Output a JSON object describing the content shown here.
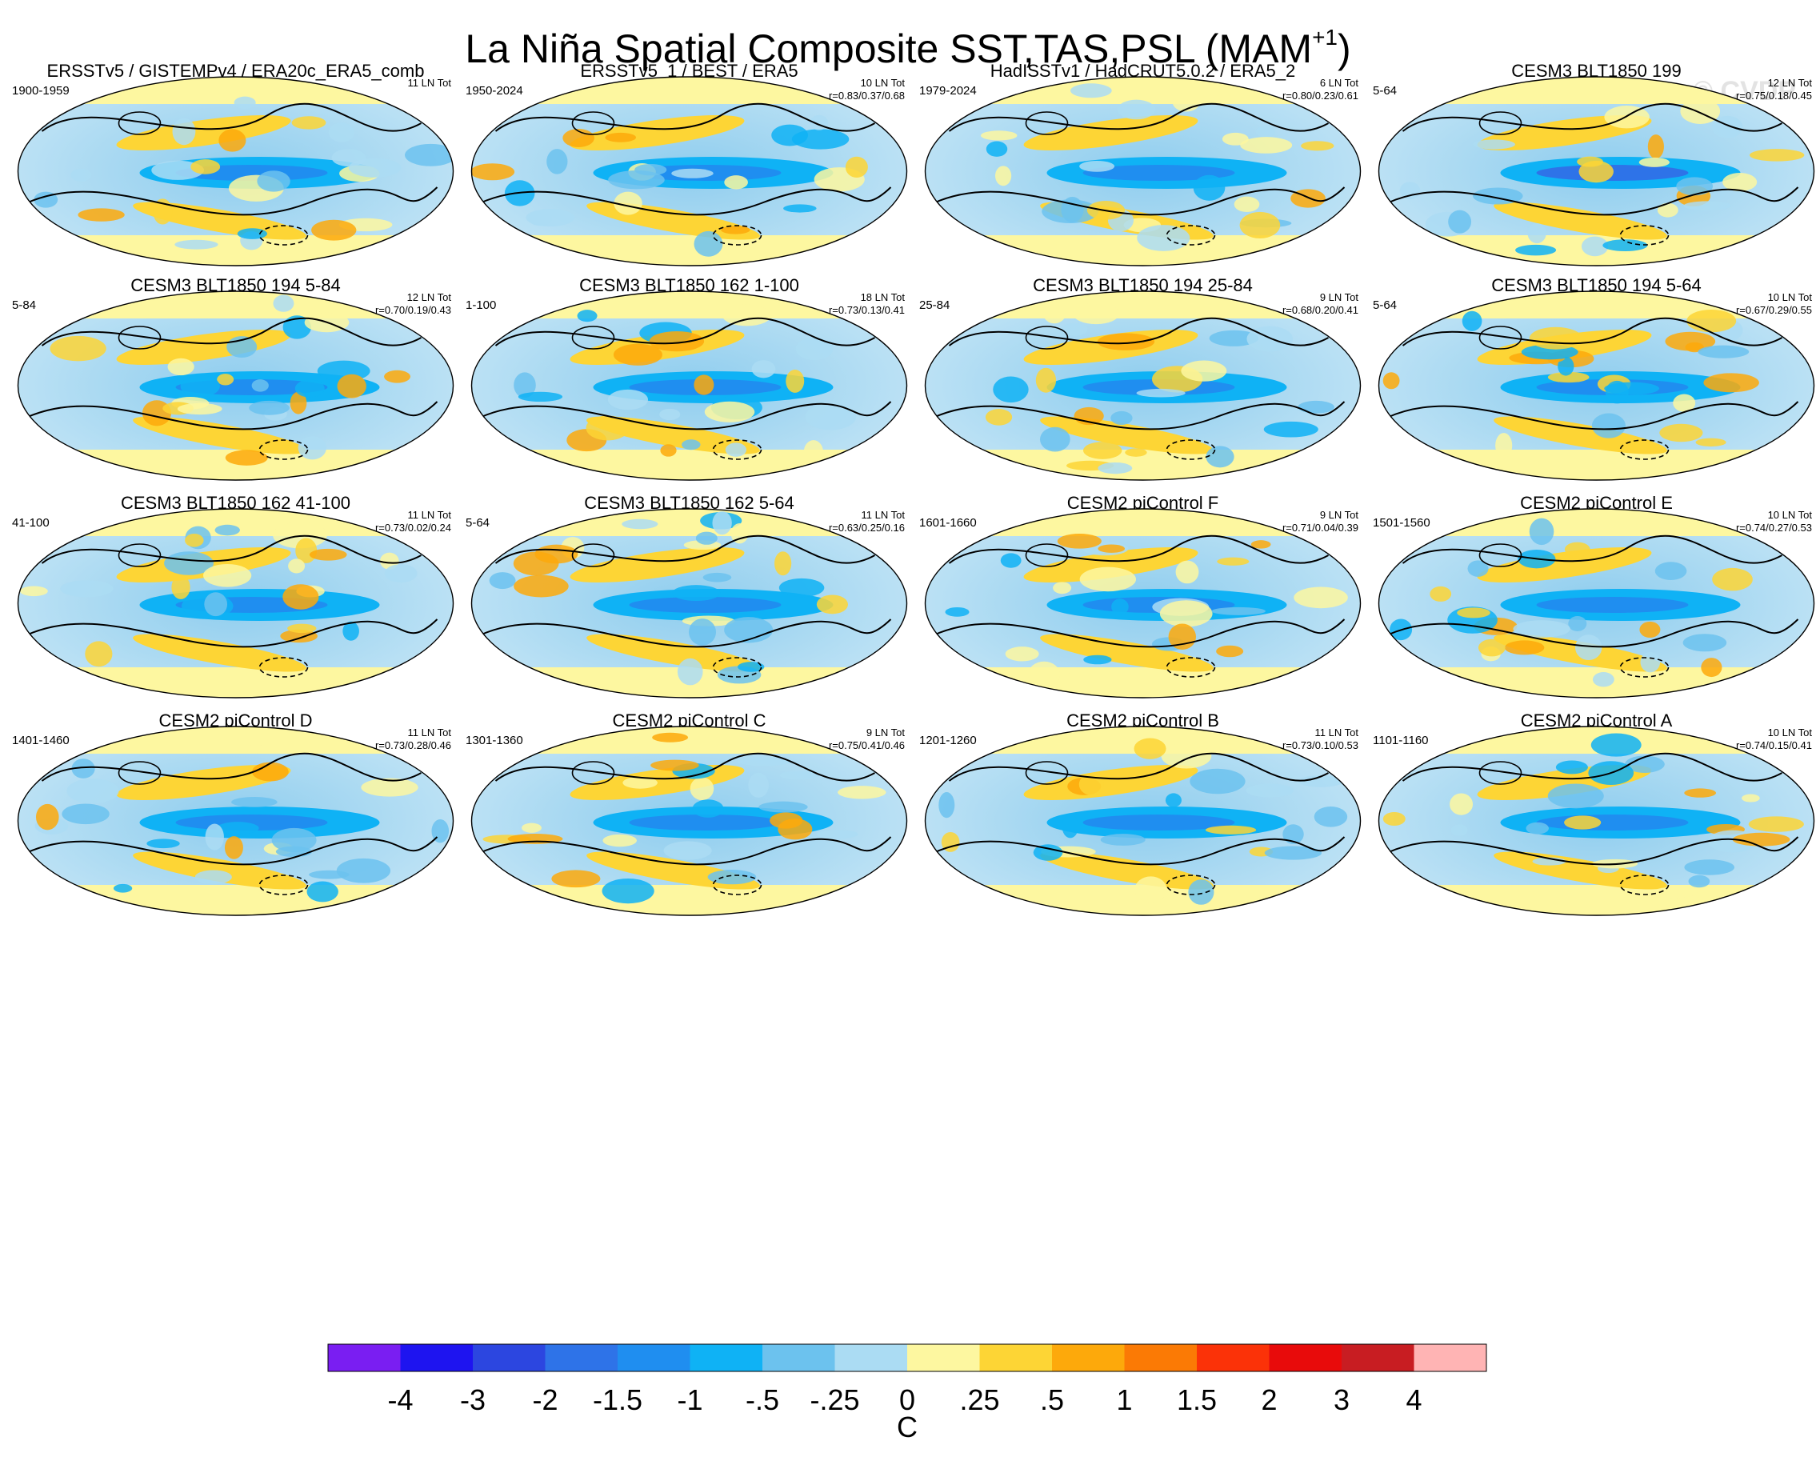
{
  "figure": {
    "title_main": "La Niña Spatial Composite SST,TAS,PSL (MAM",
    "title_sup": "+1",
    "title_end": ")",
    "watermark": "© CVDP"
  },
  "chart_data": {
    "type": "heatmap",
    "title": "La Niña Spatial Composite SST,TAS,PSL (MAM+1)",
    "projection": "Robinson (global map panels, Pacific-centered)",
    "colorbar": {
      "unit": "C",
      "tick_labels": [
        "-4",
        "-3",
        "-2",
        "-1.5",
        "-1",
        "-.5",
        "-.25",
        "0",
        ".25",
        ".5",
        "1",
        "1.5",
        "2",
        "3",
        "4"
      ],
      "colors": [
        "#7a1ef2",
        "#1e14f0",
        "#2c46e0",
        "#2e73e8",
        "#1f8ef0",
        "#0fb2f5",
        "#6cc2ee",
        "#abdcf3",
        "#fdf7a0",
        "#fdd535",
        "#fda90b",
        "#fb7a05",
        "#fb3208",
        "#e80b0b",
        "#c81d22",
        "#ffb4b4"
      ]
    },
    "panels": [
      {
        "title": "ERSSTv5 / GISTEMPv4 / ERA20c_ERA5_comb",
        "period": "1900-1959",
        "count": "11 LN Tot",
        "stats": ""
      },
      {
        "title": "ERSSTv5_1 / BEST / ERA5",
        "period": "1950-2024",
        "count": "10 LN Tot",
        "stats": "r=0.83/0.37/0.68"
      },
      {
        "title": "HadISSTv1 / HadCRUT5.0.2 / ERA5_2",
        "period": "1979-2024",
        "count": "6 LN Tot",
        "stats": "r=0.80/0.23/0.61"
      },
      {
        "title": "CESM3 BLT1850 199",
        "period": "5-64",
        "count": "12 LN Tot",
        "stats": "r=0.75/0.18/0.45"
      },
      {
        "title": "CESM3 BLT1850 194 5-84",
        "period": "5-84",
        "count": "12 LN Tot",
        "stats": "r=0.70/0.19/0.43"
      },
      {
        "title": "CESM3 BLT1850 162 1-100",
        "period": "1-100",
        "count": "18 LN Tot",
        "stats": "r=0.73/0.13/0.41"
      },
      {
        "title": "CESM3 BLT1850 194 25-84",
        "period": "25-84",
        "count": "9 LN Tot",
        "stats": "r=0.68/0.20/0.41"
      },
      {
        "title": "CESM3 BLT1850 194 5-64",
        "period": "5-64",
        "count": "10 LN Tot",
        "stats": "r=0.67/0.29/0.55"
      },
      {
        "title": "CESM3 BLT1850 162 41-100",
        "period": "41-100",
        "count": "11 LN Tot",
        "stats": "r=0.73/0.02/0.24"
      },
      {
        "title": "CESM3 BLT1850 162 5-64",
        "period": "5-64",
        "count": "11 LN Tot",
        "stats": "r=0.63/0.25/0.16"
      },
      {
        "title": "CESM2 piControl F",
        "period": "1601-1660",
        "count": "9 LN Tot",
        "stats": "r=0.71/0.04/0.39"
      },
      {
        "title": "CESM2 piControl E",
        "period": "1501-1560",
        "count": "10 LN Tot",
        "stats": "r=0.74/0.27/0.53"
      },
      {
        "title": "CESM2 piControl D",
        "period": "1401-1460",
        "count": "11 LN Tot",
        "stats": "r=0.73/0.28/0.46"
      },
      {
        "title": "CESM2 piControl C",
        "period": "1301-1360",
        "count": "9 LN Tot",
        "stats": "r=0.75/0.41/0.46"
      },
      {
        "title": "CESM2 piControl B",
        "period": "1201-1260",
        "count": "11 LN Tot",
        "stats": "r=0.73/0.10/0.53"
      },
      {
        "title": "CESM2 piControl A",
        "period": "1101-1160",
        "count": "10 LN Tot",
        "stats": "r=0.74/0.15/0.41"
      }
    ]
  }
}
